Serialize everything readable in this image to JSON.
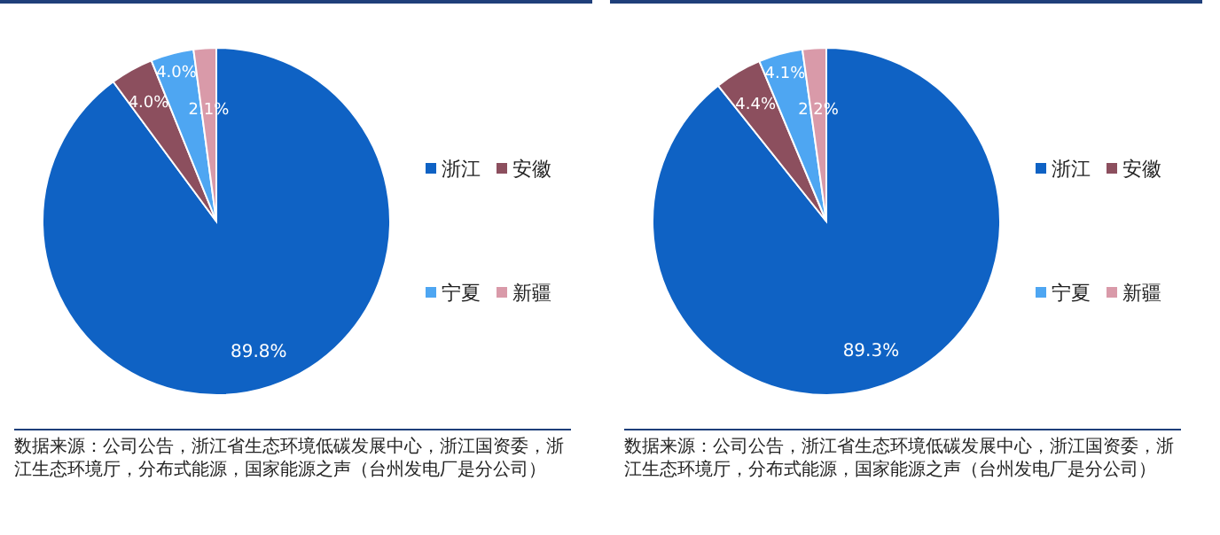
{
  "chart_data": [
    {
      "type": "pie",
      "categories": [
        "浙江",
        "安徽",
        "宁夏",
        "新疆"
      ],
      "values": [
        89.8,
        4.0,
        4.0,
        2.1
      ],
      "colors": [
        "#0f62c4",
        "#8c4f5e",
        "#4ea6f2",
        "#d99aa9"
      ],
      "value_labels": [
        "89.8%",
        "4.0%",
        "4.0%",
        "2.1%"
      ],
      "legend": "right",
      "annotations": [
        "数据来源：公司公告，浙江省生态环境低碳发展中心，浙江国资委，浙江生态环境厅，分布式能源，国家能源之声（台州发电厂是分公司）"
      ]
    },
    {
      "type": "pie",
      "categories": [
        "浙江",
        "安徽",
        "宁夏",
        "新疆"
      ],
      "values": [
        89.3,
        4.4,
        4.1,
        2.2
      ],
      "colors": [
        "#0f62c4",
        "#8c4f5e",
        "#4ea6f2",
        "#d99aa9"
      ],
      "value_labels": [
        "89.3%",
        "4.4%",
        "4.1%",
        "2.2%"
      ],
      "legend": "right",
      "annotations": [
        "数据来源：公司公告，浙江省生态环境低碳发展中心，浙江国资委，浙江生态环境厅，分布式能源，国家能源之声（台州发电厂是分公司）"
      ]
    }
  ]
}
